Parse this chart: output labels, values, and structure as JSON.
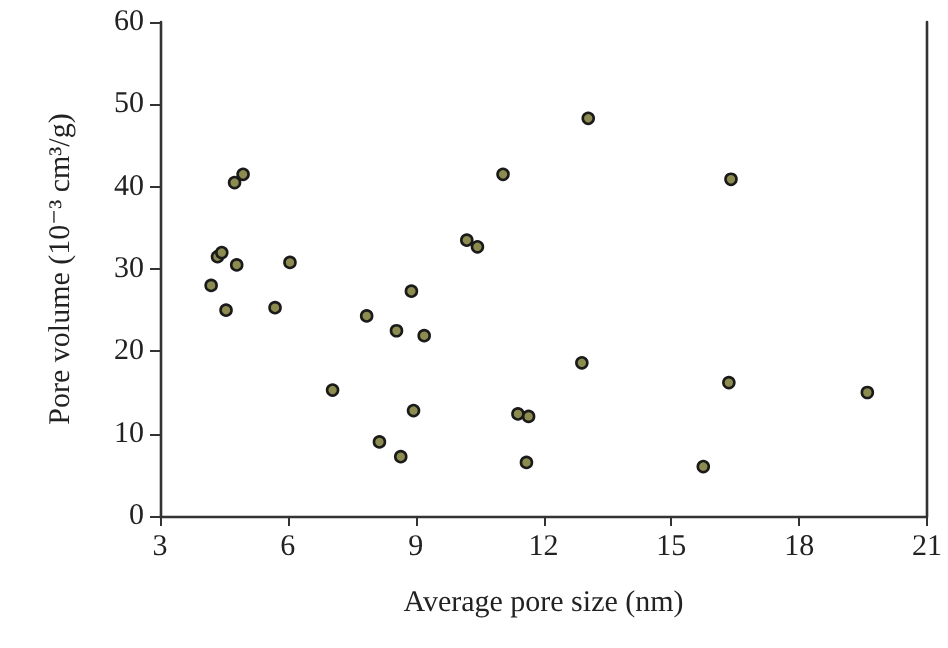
{
  "chart_data": {
    "type": "scatter",
    "xlabel": "Average pore size (nm)",
    "ylabel": "Pore volume (10⁻³ cm³/g)",
    "xlim": [
      3,
      21
    ],
    "xticks": [
      3,
      6,
      9,
      12,
      15,
      18,
      21
    ],
    "ylim": [
      0,
      60
    ],
    "yticks": [
      0,
      10,
      20,
      30,
      40,
      50,
      60
    ],
    "grid": false,
    "marker": "circle",
    "series": [
      {
        "color": "#8c8c50",
        "x": [
          4.2,
          4.35,
          4.45,
          4.55,
          4.75,
          4.8,
          4.95,
          5.7,
          6.05,
          7.05,
          7.85,
          8.15,
          8.55,
          8.65,
          8.9,
          8.95,
          9.2,
          10.2,
          10.45,
          11.05,
          11.4,
          11.65,
          11.6,
          12.9,
          13.05,
          15.75,
          16.35,
          16.4,
          19.6
        ],
        "values": [
          28,
          31.5,
          32,
          25,
          40.5,
          30.5,
          41.5,
          25.3,
          30.8,
          15.3,
          24.3,
          9,
          22.5,
          7.2,
          27.3,
          12.8,
          21.9,
          33.5,
          32.7,
          41.5,
          12.4,
          12.1,
          6.5,
          18.6,
          48.3,
          6,
          16.2,
          40.9,
          15
        ]
      }
    ]
  }
}
